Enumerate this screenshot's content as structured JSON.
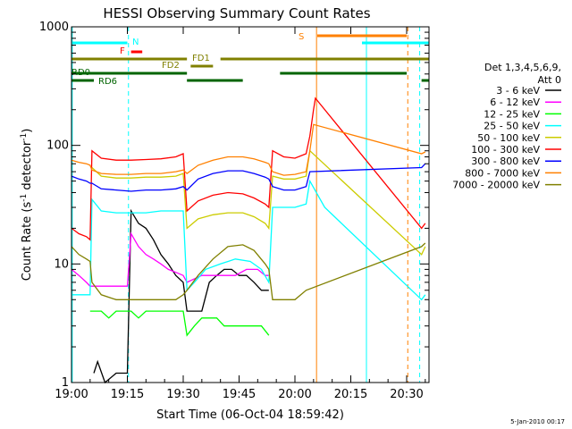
{
  "chart_data": {
    "type": "line",
    "title": "HESSI Observing Summary Count Rates",
    "xlabel": "Start Time (06-Oct-04 18:59:42)",
    "ylabel": "Count Rate (s⁻¹ detector⁻¹)",
    "ylabel_main": "Count Rate (s",
    "ylabel_sup1": "-1",
    "ylabel_mid": " detector",
    "ylabel_sup2": "-1",
    "ylabel_end": ")",
    "x_unit": "minutes of day",
    "xlim": [
      1140,
      1236
    ],
    "ylim": [
      1,
      1000
    ],
    "y_scale": "log",
    "x_ticks": [
      {
        "value": 1140,
        "label": "19:00"
      },
      {
        "value": 1155,
        "label": "19:15"
      },
      {
        "value": 1170,
        "label": "19:30"
      },
      {
        "value": 1185,
        "label": "19:45"
      },
      {
        "value": 1200,
        "label": "20:00"
      },
      {
        "value": 1215,
        "label": "20:15"
      },
      {
        "value": 1230,
        "label": "20:30"
      }
    ],
    "y_ticks": [
      {
        "value": 1,
        "label": "1"
      },
      {
        "value": 10,
        "label": "10"
      },
      {
        "value": 100,
        "label": "100"
      },
      {
        "value": 1000,
        "label": "1000"
      }
    ],
    "legend_title_1": "Det 1,3,4,5,6,9,",
    "legend_title_2": "Att 0",
    "legend_placement": "right",
    "series": [
      {
        "name": "3 - 6 keV",
        "color": "#000000",
        "points": [
          [
            1146,
            1.2
          ],
          [
            1147,
            1.5
          ],
          [
            1149,
            0.8
          ],
          [
            1152,
            1.2
          ],
          [
            1155,
            1.2
          ],
          [
            1156,
            28
          ],
          [
            1158,
            22
          ],
          [
            1160,
            20
          ],
          [
            1162,
            16
          ],
          [
            1164,
            12
          ],
          [
            1166,
            10
          ],
          [
            1168,
            8
          ],
          [
            1170,
            7
          ],
          [
            1171,
            4
          ],
          [
            1172,
            4
          ],
          [
            1175,
            4
          ],
          [
            1177,
            7
          ],
          [
            1179,
            8
          ],
          [
            1181,
            9
          ],
          [
            1183,
            9
          ],
          [
            1185,
            8
          ],
          [
            1187,
            8
          ],
          [
            1189,
            7
          ],
          [
            1191,
            6
          ],
          [
            1193,
            6
          ]
        ]
      },
      {
        "name": "6 - 12 keV",
        "color": "#ff00ff",
        "points": [
          [
            1140,
            9
          ],
          [
            1142,
            8
          ],
          [
            1144,
            7
          ],
          [
            1145,
            6.5
          ],
          [
            1155,
            6.5
          ],
          [
            1156,
            18
          ],
          [
            1158,
            14
          ],
          [
            1160,
            12
          ],
          [
            1162,
            11
          ],
          [
            1164,
            10
          ],
          [
            1166,
            9
          ],
          [
            1168,
            8.5
          ],
          [
            1170,
            8
          ],
          [
            1171,
            7
          ],
          [
            1175,
            8
          ],
          [
            1178,
            8
          ],
          [
            1181,
            8
          ],
          [
            1184,
            8
          ],
          [
            1187,
            9
          ],
          [
            1190,
            9
          ],
          [
            1192,
            8
          ],
          [
            1193,
            8
          ]
        ]
      },
      {
        "name": "12 - 25 keV",
        "color": "#00ff00",
        "points": [
          [
            1145,
            4
          ],
          [
            1148,
            4
          ],
          [
            1150,
            3.5
          ],
          [
            1152,
            4
          ],
          [
            1154,
            4
          ],
          [
            1156,
            4
          ],
          [
            1158,
            3.5
          ],
          [
            1160,
            4
          ],
          [
            1162,
            4
          ],
          [
            1164,
            4
          ],
          [
            1166,
            4
          ],
          [
            1168,
            4
          ],
          [
            1170,
            4
          ],
          [
            1171,
            2.5
          ],
          [
            1173,
            3
          ],
          [
            1175,
            3.5
          ],
          [
            1177,
            3.5
          ],
          [
            1179,
            3.5
          ],
          [
            1181,
            3
          ],
          [
            1183,
            3
          ],
          [
            1185,
            3
          ],
          [
            1187,
            3
          ],
          [
            1189,
            3
          ],
          [
            1191,
            3
          ],
          [
            1193,
            2.5
          ]
        ]
      },
      {
        "name": "25 - 50 keV",
        "color": "#00ffff",
        "points": [
          [
            1140,
            5.5
          ],
          [
            1142,
            5.5
          ],
          [
            1144,
            5.5
          ],
          [
            1145,
            5.5
          ],
          [
            1145.5,
            35
          ],
          [
            1148,
            28
          ],
          [
            1152,
            27
          ],
          [
            1156,
            27
          ],
          [
            1160,
            27
          ],
          [
            1164,
            28
          ],
          [
            1168,
            28
          ],
          [
            1170,
            28
          ],
          [
            1171,
            6
          ],
          [
            1173,
            7
          ],
          [
            1176,
            9
          ],
          [
            1180,
            10
          ],
          [
            1184,
            11
          ],
          [
            1188,
            10.5
          ],
          [
            1191,
            9
          ],
          [
            1193,
            7
          ],
          [
            1194,
            30
          ],
          [
            1197,
            30
          ],
          [
            1200,
            30
          ],
          [
            1203,
            32
          ],
          [
            1204,
            50
          ],
          [
            1208,
            30
          ],
          [
            1234,
            5
          ],
          [
            1235,
            5.5
          ]
        ]
      },
      {
        "name": "50 - 100 keV",
        "color": "#cccc00",
        "points": [
          [
            1145.5,
            65
          ],
          [
            1148,
            55
          ],
          [
            1152,
            53
          ],
          [
            1156,
            53
          ],
          [
            1160,
            54
          ],
          [
            1164,
            54
          ],
          [
            1168,
            55
          ],
          [
            1170,
            58
          ],
          [
            1171,
            20
          ],
          [
            1174,
            24
          ],
          [
            1178,
            26
          ],
          [
            1182,
            27
          ],
          [
            1186,
            27
          ],
          [
            1189,
            25
          ],
          [
            1192,
            22
          ],
          [
            1193,
            20
          ],
          [
            1194,
            55
          ],
          [
            1197,
            52
          ],
          [
            1200,
            52
          ],
          [
            1203,
            55
          ],
          [
            1204,
            90
          ],
          [
            1234,
            12
          ],
          [
            1235,
            14
          ]
        ]
      },
      {
        "name": "100 - 300 keV",
        "color": "#ff0000",
        "points": [
          [
            1140,
            20
          ],
          [
            1142,
            18
          ],
          [
            1144,
            17
          ],
          [
            1145,
            16
          ],
          [
            1145.5,
            90
          ],
          [
            1148,
            78
          ],
          [
            1152,
            75
          ],
          [
            1156,
            75
          ],
          [
            1160,
            76
          ],
          [
            1164,
            77
          ],
          [
            1168,
            80
          ],
          [
            1170,
            85
          ],
          [
            1171,
            28
          ],
          [
            1174,
            34
          ],
          [
            1178,
            38
          ],
          [
            1182,
            40
          ],
          [
            1186,
            39
          ],
          [
            1189,
            36
          ],
          [
            1192,
            32
          ],
          [
            1193,
            30
          ],
          [
            1194,
            90
          ],
          [
            1197,
            80
          ],
          [
            1200,
            78
          ],
          [
            1203,
            85
          ],
          [
            1204,
            120
          ],
          [
            1205,
            200
          ],
          [
            1205.5,
            250
          ],
          [
            1234,
            20
          ],
          [
            1235,
            22
          ]
        ]
      },
      {
        "name": "300 - 800 keV",
        "color": "#0000ff",
        "points": [
          [
            1140,
            55
          ],
          [
            1142,
            52
          ],
          [
            1144,
            50
          ],
          [
            1145,
            48
          ],
          [
            1145.5,
            48
          ],
          [
            1148,
            43
          ],
          [
            1152,
            42
          ],
          [
            1156,
            41
          ],
          [
            1160,
            42
          ],
          [
            1164,
            42
          ],
          [
            1168,
            43
          ],
          [
            1170,
            45
          ],
          [
            1171,
            42
          ],
          [
            1174,
            52
          ],
          [
            1178,
            58
          ],
          [
            1182,
            61
          ],
          [
            1186,
            61
          ],
          [
            1189,
            58
          ],
          [
            1192,
            54
          ],
          [
            1193,
            52
          ],
          [
            1194,
            45
          ],
          [
            1197,
            42
          ],
          [
            1200,
            42
          ],
          [
            1203,
            45
          ],
          [
            1204,
            60
          ],
          [
            1234,
            65
          ],
          [
            1235,
            70
          ]
        ]
      },
      {
        "name": "800 - 7000 keV",
        "color": "#ff8000",
        "points": [
          [
            1140,
            75
          ],
          [
            1142,
            72
          ],
          [
            1144,
            70
          ],
          [
            1145,
            68
          ],
          [
            1145.5,
            62
          ],
          [
            1148,
            58
          ],
          [
            1152,
            57
          ],
          [
            1156,
            57
          ],
          [
            1160,
            58
          ],
          [
            1164,
            58
          ],
          [
            1168,
            60
          ],
          [
            1170,
            62
          ],
          [
            1171,
            58
          ],
          [
            1174,
            68
          ],
          [
            1178,
            75
          ],
          [
            1182,
            80
          ],
          [
            1186,
            80
          ],
          [
            1189,
            77
          ],
          [
            1192,
            72
          ],
          [
            1193,
            70
          ],
          [
            1194,
            60
          ],
          [
            1197,
            56
          ],
          [
            1200,
            57
          ],
          [
            1203,
            60
          ],
          [
            1204,
            90
          ],
          [
            1205,
            150
          ],
          [
            1234,
            85
          ],
          [
            1235,
            88
          ]
        ]
      },
      {
        "name": "7000 - 20000 keV",
        "color": "#808000",
        "points": [
          [
            1140,
            14
          ],
          [
            1142,
            12
          ],
          [
            1144,
            11
          ],
          [
            1145,
            10.5
          ],
          [
            1145.5,
            7
          ],
          [
            1148,
            5.5
          ],
          [
            1152,
            5
          ],
          [
            1156,
            5
          ],
          [
            1160,
            5
          ],
          [
            1164,
            5
          ],
          [
            1168,
            5
          ],
          [
            1170,
            5.5
          ],
          [
            1171,
            6
          ],
          [
            1174,
            8
          ],
          [
            1178,
            11
          ],
          [
            1182,
            14
          ],
          [
            1186,
            14.5
          ],
          [
            1189,
            13
          ],
          [
            1192,
            10
          ],
          [
            1193,
            9
          ],
          [
            1194,
            5
          ],
          [
            1197,
            5
          ],
          [
            1200,
            5
          ],
          [
            1203,
            6
          ],
          [
            1234,
            14
          ],
          [
            1235,
            15
          ]
        ]
      }
    ],
    "flag_bars": [
      {
        "label": "N",
        "color": "#00ffff",
        "segments": [
          [
            1140,
            1155
          ]
        ],
        "level": 1
      },
      {
        "label": "N_right",
        "color": "#00ffff",
        "segments": [
          [
            1218,
            1236
          ]
        ],
        "level": 1
      },
      {
        "label": "F",
        "color": "#ff0000",
        "segments": [
          [
            1156,
            1159
          ]
        ],
        "level": 2
      },
      {
        "label": "S",
        "color": "#ff8000",
        "segments": [
          [
            1206,
            1230
          ]
        ],
        "level": 0
      },
      {
        "label": "FD1",
        "color": "#808000",
        "segments": [
          [
            1140,
            1171
          ],
          [
            1180,
            1236
          ]
        ],
        "level": 3
      },
      {
        "label": "FD2",
        "color": "#808000",
        "segments": [
          [
            1172,
            1178
          ]
        ],
        "level": 4
      },
      {
        "label": "RD0",
        "color": "#006400",
        "segments": [
          [
            1140,
            1171
          ],
          [
            1196,
            1230
          ]
        ],
        "level": 5
      },
      {
        "label": "RD6",
        "color": "#006400",
        "segments": [
          [
            1140,
            1146
          ],
          [
            1171,
            1186
          ],
          [
            1234,
            1236
          ]
        ],
        "level": 6
      }
    ],
    "flag_labels": [
      {
        "text": "N",
        "color": "#00ffff"
      },
      {
        "text": "F",
        "color": "#ff0000"
      },
      {
        "text": "S",
        "color": "#ff8000"
      },
      {
        "text": "FD1",
        "color": "#808000"
      },
      {
        "text": "FD2",
        "color": "#808000"
      },
      {
        "text": "RD0",
        "color": "#006400"
      },
      {
        "text": "RD6",
        "color": "#006400"
      }
    ],
    "vertical_markers": [
      {
        "x": 1140.2,
        "color": "#00ffff",
        "style": "solid"
      },
      {
        "x": 1155.3,
        "color": "#00ffff",
        "style": "dashed"
      },
      {
        "x": 1205.8,
        "color": "#ff8000",
        "style": "solid"
      },
      {
        "x": 1219.2,
        "color": "#00ffff",
        "style": "solid"
      },
      {
        "x": 1230.3,
        "color": "#ff8000",
        "style": "dashed"
      },
      {
        "x": 1233.5,
        "color": "#00ffff",
        "style": "dashed"
      },
      {
        "x": 1236.0,
        "color": "#00ffff",
        "style": "dashed"
      }
    ],
    "footer_date": "5-Jan-2010 00:17"
  }
}
